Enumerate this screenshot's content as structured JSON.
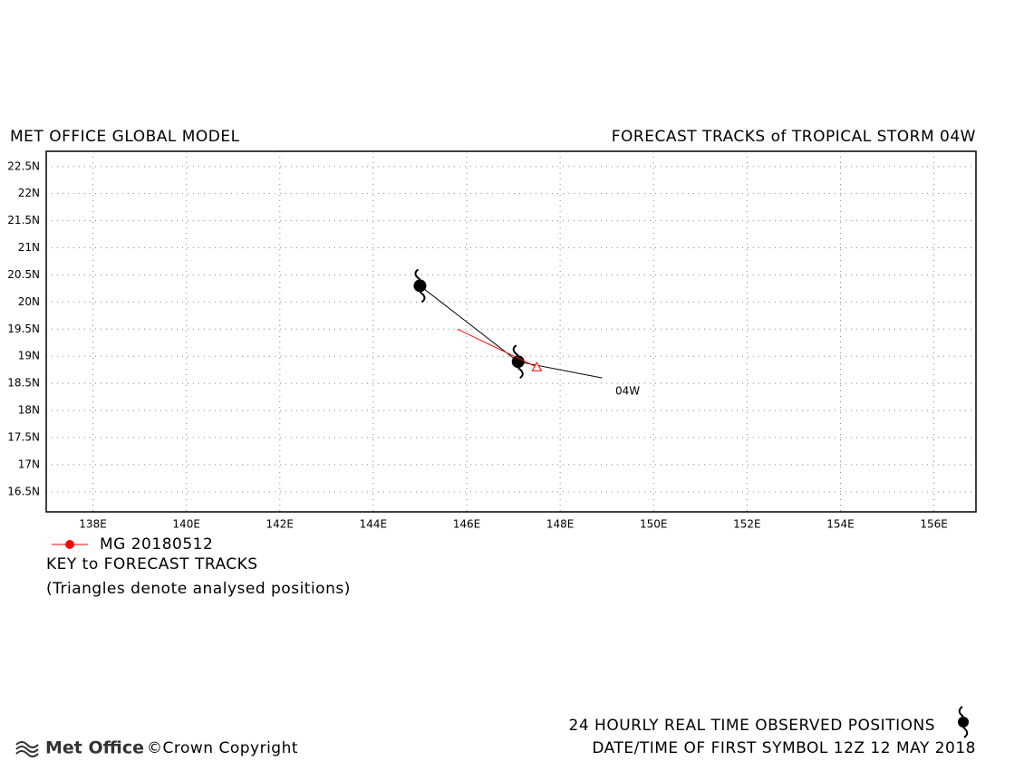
{
  "chart_data": {
    "type": "line",
    "title": "MET OFFICE GLOBAL MODEL",
    "subtitle": "FORECAST TRACKS of TROPICAL STORM 04W",
    "xlim": [
      137,
      156.9
    ],
    "ylim": [
      16.13,
      22.78
    ],
    "xticks": [
      {
        "value": 138,
        "label": "138E"
      },
      {
        "value": 140,
        "label": "140E"
      },
      {
        "value": 142,
        "label": "142E"
      },
      {
        "value": 144,
        "label": "144E"
      },
      {
        "value": 146,
        "label": "146E"
      },
      {
        "value": 148,
        "label": "148E"
      },
      {
        "value": 150,
        "label": "150E"
      },
      {
        "value": 152,
        "label": "152E"
      },
      {
        "value": 154,
        "label": "154E"
      },
      {
        "value": 156,
        "label": "156E"
      }
    ],
    "yticks": [
      {
        "value": 16.5,
        "label": "16.5N"
      },
      {
        "value": 17,
        "label": "17N"
      },
      {
        "value": 17.5,
        "label": "17.5N"
      },
      {
        "value": 18,
        "label": "18N"
      },
      {
        "value": 18.5,
        "label": "18.5N"
      },
      {
        "value": 19,
        "label": "19N"
      },
      {
        "value": 19.5,
        "label": "19.5N"
      },
      {
        "value": 20,
        "label": "20N"
      },
      {
        "value": 20.5,
        "label": "20.5N"
      },
      {
        "value": 21,
        "label": "21N"
      },
      {
        "value": 21.5,
        "label": "21.5N"
      },
      {
        "value": 22,
        "label": "22N"
      },
      {
        "value": 22.5,
        "label": "22.5N"
      }
    ],
    "grid": true,
    "series": [
      {
        "name": "04W",
        "color": "#000000",
        "x": [
          145.0,
          147.1,
          148.9
        ],
        "values": [
          20.3,
          18.9,
          18.6
        ]
      },
      {
        "name": "MG 20180512",
        "color": "#ff0000",
        "x": [
          145.8,
          147.5
        ],
        "values": [
          19.5,
          18.8
        ]
      }
    ],
    "key_title": "KEY to FORECAST TRACKS",
    "key_note": "(Triangles denote analysed positions)",
    "footer_line1": "24 HOURLY REAL TIME OBSERVED POSITIONS",
    "footer_line2": "DATE/TIME OF FIRST SYMBOL 12Z 12 MAY 2018",
    "logo": "Met Office",
    "copyright": "©Crown Copyright"
  }
}
